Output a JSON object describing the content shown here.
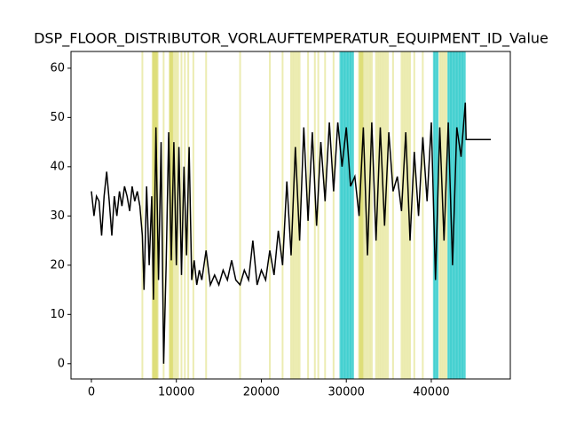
{
  "chart_data": {
    "type": "line",
    "title": "DSP_FLOOR_DISTRIBUTOR_VORLAUFTEMPERATUR_EQUIPMENT_ID_Value",
    "xlim": [
      -2400,
      49300
    ],
    "ylim": [
      -3.1,
      63.4
    ],
    "xticks": [
      0,
      10000,
      20000,
      30000,
      40000
    ],
    "yticks": [
      0,
      10,
      20,
      30,
      40,
      50,
      60
    ],
    "vlines": [
      {
        "color": "#bfbf00",
        "alpha": 0.3,
        "x": [
          6000,
          7200,
          7300,
          7400,
          7500,
          7600,
          7700,
          7800,
          8500,
          9200,
          9300,
          9400,
          9500,
          9600,
          9800,
          10000,
          10200,
          10600,
          11000,
          11400,
          12000,
          13500,
          17500,
          21000,
          22500,
          23500,
          23700,
          23900,
          24100,
          24300,
          24500,
          25500,
          26300,
          26700,
          27500,
          28500,
          31500,
          31600,
          31700,
          31800,
          31900,
          32000,
          32200,
          32400,
          32600,
          32800,
          33000,
          33500,
          33700,
          33900,
          34100,
          34300,
          34500,
          34700,
          34900,
          35500,
          36500,
          36700,
          36900,
          37100,
          37300,
          37500,
          38000,
          39000,
          41000,
          41200,
          41400,
          41600,
          41800
        ]
      },
      {
        "color": "#00bfbf",
        "alpha": 0.6,
        "x": [
          29300,
          29450,
          29600,
          29750,
          29900,
          30050,
          30200,
          30350,
          30500,
          30650,
          30800,
          40300,
          40450,
          40600,
          40750,
          42000,
          42150,
          42300,
          42450,
          42600,
          42750,
          42900,
          43050,
          43200,
          43350,
          43500,
          43650,
          43800,
          43950
        ]
      }
    ],
    "series": [
      {
        "color": "#000000",
        "x": [
          0,
          300,
          600,
          900,
          1200,
          1500,
          1800,
          2100,
          2400,
          2700,
          3000,
          3300,
          3600,
          3900,
          4200,
          4500,
          4800,
          5100,
          5400,
          5700,
          6000,
          6200,
          6500,
          6800,
          7100,
          7300,
          7600,
          7900,
          8200,
          8500,
          8800,
          9100,
          9400,
          9700,
          10000,
          10300,
          10600,
          10900,
          11200,
          11500,
          11800,
          12100,
          12400,
          12700,
          13000,
          13500,
          14000,
          14500,
          15000,
          15500,
          16000,
          16500,
          17000,
          17500,
          18000,
          18500,
          19000,
          19500,
          20000,
          20500,
          21000,
          21500,
          22000,
          22500,
          23000,
          23500,
          24000,
          24500,
          25000,
          25500,
          26000,
          26500,
          27000,
          27500,
          28000,
          28500,
          29000,
          29500,
          30000,
          30500,
          31000,
          31500,
          32000,
          32500,
          33000,
          33500,
          34000,
          34500,
          35000,
          35500,
          36000,
          36500,
          37000,
          37500,
          38000,
          38500,
          39000,
          39500,
          40000,
          40500,
          41000,
          41500,
          42000,
          42500,
          43000,
          43500,
          44000,
          44100,
          47000
        ],
        "values": [
          35,
          30,
          34,
          33,
          26,
          34,
          39,
          33,
          26,
          34,
          30,
          35,
          32,
          36,
          34,
          31,
          36,
          33,
          35,
          32,
          26,
          15,
          36,
          20,
          34,
          13,
          48,
          17,
          45,
          0,
          20,
          47,
          21,
          45,
          20,
          44,
          18,
          40,
          22,
          44,
          17,
          21,
          16,
          19,
          17,
          23,
          16,
          18,
          16,
          19,
          17,
          21,
          17,
          16,
          19,
          17,
          25,
          16,
          19,
          17,
          23,
          18,
          27,
          20,
          37,
          22,
          44,
          25,
          48,
          29,
          47,
          28,
          45,
          33,
          49,
          35,
          49,
          40,
          48,
          36,
          38,
          30,
          48,
          22,
          49,
          25,
          48,
          28,
          47,
          35,
          38,
          31,
          47,
          25,
          43,
          30,
          46,
          33,
          49,
          17,
          48,
          25,
          49,
          20,
          48,
          42,
          53,
          45.5,
          45.5
        ]
      }
    ]
  }
}
